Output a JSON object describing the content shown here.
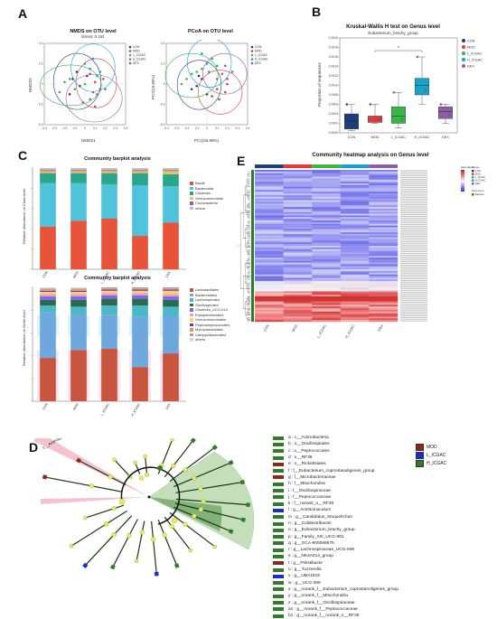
{
  "panel_labels": {
    "a": "A",
    "b": "B",
    "c": "C",
    "d": "D",
    "e": "E"
  },
  "groups": [
    "CON",
    "MOD",
    "L_ICGAC",
    "H_ICGAC",
    "DEX"
  ],
  "colors": {
    "CON": "#1f3d7a",
    "MOD": "#e03a3e",
    "L_ICGAC": "#3bb54a",
    "H_ICGAC": "#1aa3c8",
    "DEX": "#8c5ea8",
    "lefse_MOD": "#8b2a1a",
    "lefse_L": "#1a2bd6",
    "lefse_H": "#2f7d2a"
  },
  "nmds": {
    "title": "NMDS on OTU level",
    "subtitle": "stress: 0.161",
    "xlabel": "NMDS1",
    "ylabel": "NMDS2"
  },
  "pcoa": {
    "title": "PCoA on OTU level",
    "xlabel": "PC1(26.89%)",
    "ylabel": "PC2(15.09%)"
  },
  "kw": {
    "title": "Kruskal-Wallis H test on Genus level",
    "subtitle": "Eubacterium_brachy_group",
    "ylabel": "Proportion of sequences",
    "sig": "*"
  },
  "barplot1": {
    "title": "Community barplot analysis",
    "ylabel": "Relative abundance on Class level"
  },
  "barplot2": {
    "title": "Community barplot analysis",
    "ylabel": "Relative abundance on Order level"
  },
  "heatmap": {
    "title": "Community heatmap analysis on Genus level",
    "legend_title": "Abundance",
    "group_title": "Group",
    "taxonomy_title": "Taxonomy",
    "taxonomy_item": "Bacteria"
  },
  "chart_data": [
    {
      "type": "scatter",
      "title": "NMDS on OTU level",
      "xlabel": "NMDS1",
      "ylabel": "NMDS2",
      "xlim": [
        -0.4,
        0.4
      ],
      "ylim": [
        -0.4,
        0.4
      ],
      "xticks": [
        "-0.4",
        "-0.3",
        "-0.2",
        "-0.1",
        "0",
        "0.1",
        "0.2",
        "0.3",
        "0.4"
      ],
      "yticks": [
        "-0.4",
        "-0.2",
        "0",
        "0.2",
        "0.4"
      ],
      "series": [
        {
          "name": "CON",
          "points": [
            [
              -0.12,
              0.05
            ],
            [
              -0.05,
              -0.02
            ],
            [
              -0.15,
              -0.1
            ],
            [
              0.02,
              0.08
            ],
            [
              -0.08,
              0.12
            ]
          ]
        },
        {
          "name": "MOD",
          "points": [
            [
              0.1,
              0.02
            ],
            [
              0.15,
              -0.05
            ],
            [
              0.05,
              0.1
            ],
            [
              0.18,
              0.05
            ],
            [
              0.08,
              -0.08
            ]
          ]
        },
        {
          "name": "L_ICGAC",
          "points": [
            [
              -0.2,
              0.02
            ],
            [
              -0.1,
              -0.05
            ],
            [
              -0.25,
              -0.08
            ],
            [
              0.0,
              0.0
            ],
            [
              -0.15,
              0.05
            ]
          ]
        },
        {
          "name": "H_ICGAC",
          "points": [
            [
              0.05,
              0.15
            ],
            [
              0.12,
              0.08
            ],
            [
              0.0,
              0.2
            ],
            [
              0.15,
              0.12
            ],
            [
              0.08,
              0.25
            ]
          ]
        },
        {
          "name": "DEX",
          "points": [
            [
              0.05,
              -0.15
            ],
            [
              0.12,
              -0.1
            ],
            [
              -0.02,
              -0.18
            ],
            [
              0.2,
              -0.05
            ],
            [
              0.1,
              -0.22
            ]
          ]
        }
      ]
    },
    {
      "type": "scatter",
      "title": "PCoA on OTU level",
      "xlabel": "PC1(26.89%)",
      "ylabel": "PC2(15.09%)",
      "xlim": [
        -0.4,
        0.4
      ],
      "ylim": [
        -0.4,
        0.4
      ],
      "xticks": [
        "-0.4",
        "-0.3",
        "-0.2",
        "-0.1",
        "0",
        "0.1",
        "0.2",
        "0.3",
        "0.4"
      ],
      "yticks": [
        "-0.4",
        "-0.2",
        "0",
        "0.2",
        "0.4"
      ],
      "series": [
        {
          "name": "CON",
          "points": [
            [
              -0.1,
              -0.02
            ],
            [
              -0.05,
              0.05
            ],
            [
              -0.15,
              -0.05
            ],
            [
              0.0,
              -0.1
            ],
            [
              -0.08,
              0.08
            ]
          ]
        },
        {
          "name": "MOD",
          "points": [
            [
              0.1,
              -0.05
            ],
            [
              0.18,
              -0.08
            ],
            [
              0.05,
              -0.12
            ],
            [
              0.2,
              0.0
            ],
            [
              0.12,
              -0.15
            ]
          ]
        },
        {
          "name": "L_ICGAC",
          "points": [
            [
              -0.15,
              0.1
            ],
            [
              -0.2,
              0.05
            ],
            [
              -0.1,
              0.12
            ],
            [
              -0.25,
              0.0
            ],
            [
              -0.05,
              0.15
            ]
          ]
        },
        {
          "name": "H_ICGAC",
          "points": [
            [
              0.0,
              0.2
            ],
            [
              0.05,
              0.25
            ],
            [
              -0.05,
              0.3
            ],
            [
              0.1,
              0.18
            ],
            [
              0.02,
              0.12
            ]
          ]
        },
        {
          "name": "DEX",
          "points": [
            [
              0.15,
              0.1
            ],
            [
              0.2,
              0.05
            ],
            [
              0.25,
              0.12
            ],
            [
              0.1,
              0.05
            ],
            [
              0.18,
              0.18
            ]
          ]
        }
      ]
    },
    {
      "type": "box",
      "title": "Kruskal-Wallis H test on Genus level",
      "subtitle": "Eubacterium_brachy_group",
      "ylabel": "Proportion of sequences",
      "categories": [
        "CON",
        "MOD",
        "L_ICGAC",
        "H_ICGAC",
        "DEX"
      ],
      "yticks": [
        "0.0000",
        "0.0002",
        "0.0004",
        "0.0006",
        "0.0008",
        "0.0010",
        "0.0012",
        "0.0014",
        "0.0016",
        "0.0018",
        "0.0020"
      ],
      "ylim": [
        0,
        0.002
      ],
      "boxes": [
        {
          "name": "CON",
          "min": 5e-05,
          "q1": 8e-05,
          "median": 0.00025,
          "q3": 0.0004,
          "max": 0.0006
        },
        {
          "name": "MOD",
          "min": 0.0002,
          "q1": 0.00022,
          "median": 0.00035,
          "q3": 0.00035,
          "max": 0.0006
        },
        {
          "name": "L_ICGAC",
          "min": 0.0001,
          "q1": 0.0002,
          "median": 0.00035,
          "q3": 0.00055,
          "max": 0.00085
        },
        {
          "name": "H_ICGAC",
          "min": 0.0006,
          "q1": 0.0008,
          "median": 0.001,
          "q3": 0.00115,
          "max": 0.0016
        },
        {
          "name": "DEX",
          "min": 0.0002,
          "q1": 0.0003,
          "median": 0.00045,
          "q3": 0.00055,
          "max": 0.0006
        }
      ],
      "significance": {
        "between": [
          "MOD",
          "H_ICGAC"
        ],
        "label": "*"
      }
    },
    {
      "type": "bar",
      "stacked": true,
      "title": "Community barplot analysis",
      "ylabel": "Relative abundance on Class level",
      "categories": [
        "CON",
        "MOD",
        "L_ICGAC",
        "H_ICGAC",
        "DEX"
      ],
      "series": [
        {
          "name": "Bacilli",
          "color": "#e8543a",
          "values": [
            0.42,
            0.48,
            0.5,
            0.33,
            0.46
          ]
        },
        {
          "name": "Bacteroidia",
          "color": "#4fc3d9",
          "values": [
            0.43,
            0.37,
            0.34,
            0.5,
            0.36
          ]
        },
        {
          "name": "Clostridia",
          "color": "#2ca58d",
          "values": [
            0.1,
            0.1,
            0.11,
            0.12,
            0.12
          ]
        },
        {
          "name": "Verrucomicrobiae",
          "color": "#f2c14e",
          "values": [
            0.02,
            0.02,
            0.02,
            0.02,
            0.03
          ]
        },
        {
          "name": "Coriobacteriia",
          "color": "#9b59b6",
          "values": [
            0.01,
            0.01,
            0.01,
            0.01,
            0.01
          ]
        },
        {
          "name": "others",
          "color": "#bdbdbd",
          "values": [
            0.02,
            0.02,
            0.02,
            0.02,
            0.02
          ]
        }
      ]
    },
    {
      "type": "bar",
      "stacked": true,
      "title": "Community barplot analysis",
      "ylabel": "Relative abundance on Order level",
      "categories": [
        "CON",
        "MOD",
        "L_ICGAC",
        "H_ICGAC",
        "DEX"
      ],
      "series": [
        {
          "name": "Lactobacillales",
          "color": "#c8553d",
          "values": [
            0.38,
            0.45,
            0.46,
            0.3,
            0.42
          ]
        },
        {
          "name": "Bacteroidales",
          "color": "#6fa8dc",
          "values": [
            0.4,
            0.32,
            0.3,
            0.44,
            0.33
          ]
        },
        {
          "name": "Lachnospirales",
          "color": "#4ab8c8",
          "values": [
            0.06,
            0.06,
            0.08,
            0.1,
            0.08
          ]
        },
        {
          "name": "Oscillospirales",
          "color": "#2d6a4f",
          "values": [
            0.05,
            0.06,
            0.06,
            0.06,
            0.06
          ]
        },
        {
          "name": "Clostridia_UCG-014",
          "color": "#7b68ee",
          "values": [
            0.03,
            0.03,
            0.03,
            0.03,
            0.03
          ]
        },
        {
          "name": "Erysipelotrichales",
          "color": "#e8a0bf",
          "values": [
            0.02,
            0.02,
            0.02,
            0.02,
            0.02
          ]
        },
        {
          "name": "Verrucomicrobiales",
          "color": "#ffd166",
          "values": [
            0.02,
            0.02,
            0.02,
            0.02,
            0.03
          ]
        },
        {
          "name": "Peptostreptococcales",
          "color": "#6a3d9a",
          "values": [
            0.01,
            0.01,
            0.01,
            0.01,
            0.01
          ]
        },
        {
          "name": "Mycoplasmatales",
          "color": "#f78c6b",
          "values": [
            0.01,
            0.01,
            0.01,
            0.01,
            0.01
          ]
        },
        {
          "name": "Campylobacterales",
          "color": "#a3a3a3",
          "values": [
            0.01,
            0.01,
            0.01,
            0.01,
            0.01
          ]
        },
        {
          "name": "others",
          "color": "#d9d9d9",
          "values": [
            0.01,
            0.01,
            0.0,
            0.0,
            0.0
          ]
        }
      ]
    }
  ],
  "lefse": {
    "clade_label": "c__Actinobacteria",
    "items": [
      {
        "label": "a : c__Actinobacteria",
        "group": "H_ICGAC"
      },
      {
        "label": "b : o__Oscillospirales",
        "group": "H_ICGAC"
      },
      {
        "label": "c : o__Peptococcales",
        "group": "H_ICGAC"
      },
      {
        "label": "d : o__RF39",
        "group": "H_ICGAC"
      },
      {
        "label": "e : o__Rickettsiales",
        "group": "MOD"
      },
      {
        "label": "f : f__Eubacterium_coprostanoligenes_group",
        "group": "H_ICGAC"
      },
      {
        "label": "g : f__Microbacteriaceae",
        "group": "MOD"
      },
      {
        "label": "h : f__Mitochondria",
        "group": "H_ICGAC"
      },
      {
        "label": "i : f__Oscillospiraceae",
        "group": "H_ICGAC"
      },
      {
        "label": "j : f__Peptococcaceae",
        "group": "H_ICGAC"
      },
      {
        "label": "k : f__norank_o__RF39",
        "group": "H_ICGAC"
      },
      {
        "label": "l : g__Acetitomaculum",
        "group": "L_ICGAC"
      },
      {
        "label": "m : g__Candidatus_Stoquefichus",
        "group": "H_ICGAC"
      },
      {
        "label": "n : g__Colidextribacter",
        "group": "H_ICGAC"
      },
      {
        "label": "o : g__Eubacterium_brachy_group",
        "group": "H_ICGAC"
      },
      {
        "label": "p : g__Family_XIII_UCG-001",
        "group": "H_ICGAC"
      },
      {
        "label": "q : g__GCA-900066575",
        "group": "H_ICGAC"
      },
      {
        "label": "r : g__Lachnospiraceae_UCG-006",
        "group": "H_ICGAC"
      },
      {
        "label": "s : g__NK4A214_group",
        "group": "H_ICGAC"
      },
      {
        "label": "t : g__Pelistibacte",
        "group": "MOD"
      },
      {
        "label": "u : g__Tuzzerella",
        "group": "H_ICGAC"
      },
      {
        "label": "v : g__UBA1819",
        "group": "L_ICGAC"
      },
      {
        "label": "w : g__UCG-009",
        "group": "H_ICGAC"
      },
      {
        "label": "x : g__norank_f__Eubacterium_coprostanoligenes_group",
        "group": "H_ICGAC"
      },
      {
        "label": "y : g__norank_f__Mitochondria",
        "group": "H_ICGAC"
      },
      {
        "label": "z : g__norank_f__Oscillospiraceae",
        "group": "H_ICGAC"
      },
      {
        "label": "a1 : g__norank_f__Peptococcaceae",
        "group": "H_ICGAC"
      },
      {
        "label": "b1 : g__norank_f__norank_o__RF39",
        "group": "H_ICGAC"
      }
    ],
    "legend": [
      {
        "name": "MOD",
        "color": "#8b2a1a"
      },
      {
        "name": "L_ICGAC",
        "color": "#1a2bd6"
      },
      {
        "name": "H_ICGAC",
        "color": "#2f7d2a"
      }
    ]
  }
}
